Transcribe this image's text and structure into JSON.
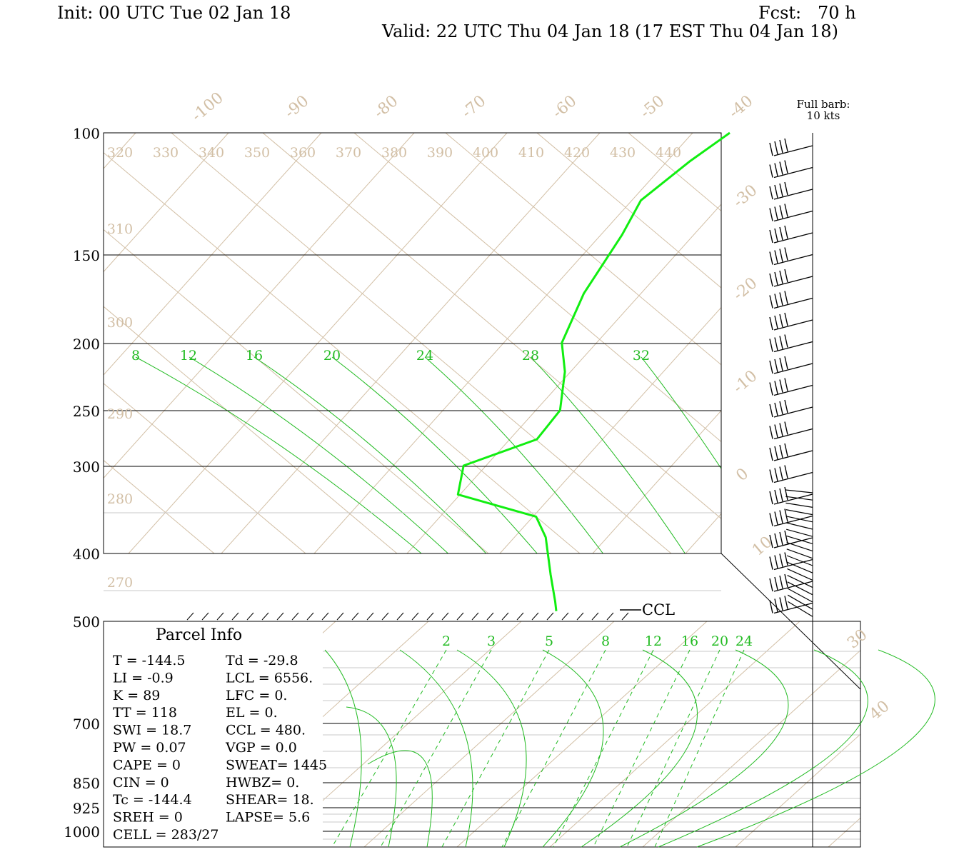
{
  "header": {
    "init": "Init: 00 UTC Tue 02 Jan 18",
    "fcst": "Fcst:   70 h",
    "valid": "Valid: 22 UTC Thu 04 Jan 18 (17 EST Thu 04 Jan 18)"
  },
  "colors": {
    "background": "#ffffff",
    "axis": "#000000",
    "isopleth": "#d2bfa5",
    "mixing": "#22bb22",
    "profile": "#11ee11"
  },
  "barb_legend": {
    "line1": "Full barb:",
    "line2": "10 kts"
  },
  "ccl_label": "CCL",
  "chart_data": {
    "type": "skew-t",
    "pressure_ticks": [
      "100",
      "150",
      "200",
      "250",
      "300",
      "400",
      "500",
      "700",
      "850",
      "925",
      "1000"
    ],
    "isotherm_labels": [
      "-100",
      "-90",
      "-80",
      "-70",
      "-60",
      "-50",
      "-40",
      "-30",
      "-20",
      "-10",
      "0",
      "10",
      "30",
      "40"
    ],
    "theta_labels_top": [
      "320",
      "330",
      "340",
      "350",
      "360",
      "370",
      "380",
      "390",
      "400",
      "410",
      "420",
      "430",
      "440"
    ],
    "theta_labels_left": [
      "310",
      "300",
      "290",
      "280",
      "270"
    ],
    "mixing_labels_upper": [
      "8",
      "12",
      "16",
      "20",
      "24",
      "28",
      "32"
    ],
    "mixing_labels_lower": [
      "2",
      "3",
      "5",
      "8",
      "12",
      "16",
      "20",
      "24"
    ],
    "temperature_profile": [
      {
        "p": 100,
        "t": -40
      },
      {
        "p": 110,
        "t": -42
      },
      {
        "p": 125,
        "t": -44
      },
      {
        "p": 140,
        "t": -43
      },
      {
        "p": 170,
        "t": -42
      },
      {
        "p": 200,
        "t": -40
      },
      {
        "p": 220,
        "t": -37
      },
      {
        "p": 250,
        "t": -34
      },
      {
        "p": 275,
        "t": -34
      },
      {
        "p": 300,
        "t": -40
      },
      {
        "p": 330,
        "t": -38
      },
      {
        "p": 355,
        "t": -27
      },
      {
        "p": 380,
        "t": -24
      },
      {
        "p": 430,
        "t": -20
      },
      {
        "p": 470,
        "t": -17
      },
      {
        "p": 485,
        "t": -16
      }
    ]
  },
  "parcel_info": {
    "title": "Parcel Info",
    "rows": [
      [
        "T  =  -144.5",
        "Td = -29.8"
      ],
      [
        "LI =    -0.9",
        "LCL = 6556."
      ],
      [
        "K  =      89",
        "LFC =    0."
      ],
      [
        "TT =     118",
        "EL  =    0."
      ],
      [
        "SWI =   18.7",
        "CCL =  480."
      ],
      [
        "PW =    0.07",
        "VGP =   0.0"
      ],
      [
        "CAPE =     0",
        "SWEAT= 1445"
      ],
      [
        "CIN =      0",
        "HWBZ=    0."
      ],
      [
        "Tc =  -144.4",
        "SHEAR=  18."
      ],
      [
        "SREH =     0",
        "LAPSE=  5.6"
      ],
      [
        "CELL = 283/27",
        ""
      ]
    ]
  }
}
